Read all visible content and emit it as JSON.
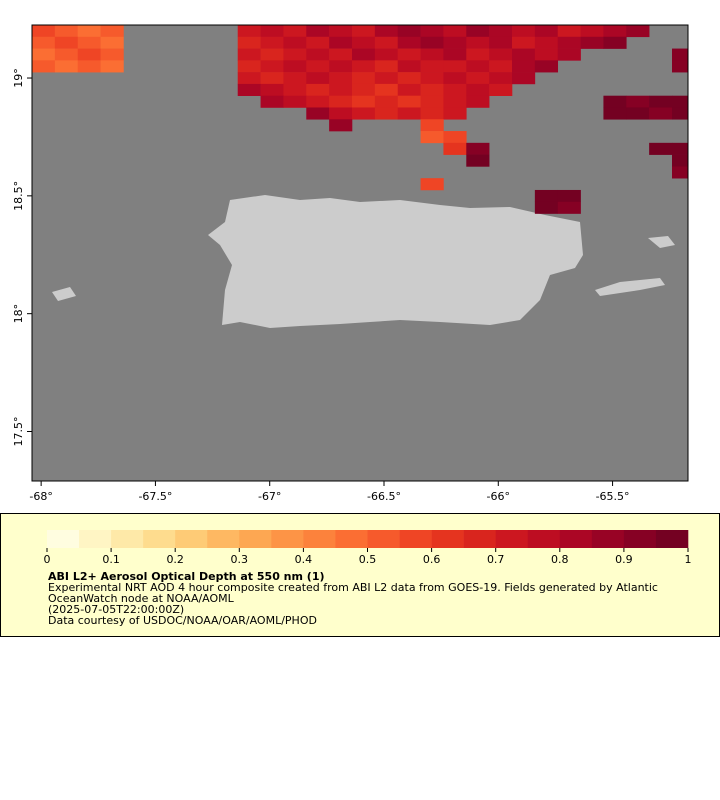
{
  "map": {
    "xlim": [
      -68.04,
      -65.17
    ],
    "ylim": [
      17.29,
      19.225
    ],
    "xticks": [
      {
        "value": -68,
        "label": "-68°"
      },
      {
        "value": -67.5,
        "label": "-67.5°"
      },
      {
        "value": -67,
        "label": "-67°"
      },
      {
        "value": -66.5,
        "label": "-66.5°"
      },
      {
        "value": -66,
        "label": "-66°"
      },
      {
        "value": -65.5,
        "label": "-65.5°"
      }
    ],
    "yticks": [
      {
        "value": 19,
        "label": "19°"
      },
      {
        "value": 18.5,
        "label": "18.5°"
      },
      {
        "value": 18,
        "label": "18°"
      },
      {
        "value": 17.5,
        "label": "17.5°"
      }
    ],
    "grid": {
      "lon0": -68.04,
      "dlon": 0.1,
      "lat0": 19.225,
      "dlat": 0.05,
      "rows": [
        [
          0.55,
          0.5,
          0.45,
          0.5,
          null,
          null,
          null,
          null,
          null,
          0.7,
          0.75,
          0.7,
          0.8,
          0.75,
          0.7,
          0.8,
          0.85,
          0.8,
          0.75,
          0.85,
          0.8,
          0.75,
          0.8,
          0.7,
          0.75,
          0.8,
          0.85,
          null,
          null
        ],
        [
          0.5,
          0.55,
          0.5,
          0.45,
          null,
          null,
          null,
          null,
          null,
          0.65,
          0.7,
          0.75,
          0.7,
          0.8,
          0.75,
          0.7,
          0.8,
          0.85,
          0.8,
          0.75,
          0.8,
          0.7,
          0.75,
          0.8,
          0.85,
          0.9,
          null,
          null,
          null
        ],
        [
          0.45,
          0.5,
          0.55,
          0.5,
          null,
          null,
          null,
          null,
          null,
          0.7,
          0.65,
          0.7,
          0.75,
          0.7,
          0.8,
          0.75,
          0.7,
          0.75,
          0.8,
          0.7,
          0.75,
          0.8,
          0.75,
          0.8,
          null,
          null,
          null,
          null,
          0.9
        ],
        [
          0.5,
          0.45,
          0.5,
          0.45,
          null,
          null,
          null,
          null,
          null,
          0.65,
          0.7,
          0.75,
          0.7,
          0.75,
          0.7,
          0.65,
          0.75,
          0.7,
          0.7,
          0.75,
          0.7,
          0.8,
          0.85,
          null,
          null,
          null,
          null,
          null,
          0.9
        ],
        [
          null,
          null,
          null,
          null,
          null,
          null,
          null,
          null,
          null,
          0.7,
          0.65,
          0.7,
          0.75,
          0.7,
          0.65,
          0.7,
          0.65,
          0.7,
          0.75,
          0.7,
          0.75,
          0.8,
          null,
          null,
          null,
          null,
          null,
          null,
          null
        ],
        [
          null,
          null,
          null,
          null,
          null,
          null,
          null,
          null,
          null,
          0.8,
          0.75,
          0.7,
          0.65,
          0.7,
          0.65,
          0.6,
          0.7,
          0.65,
          0.7,
          0.75,
          0.7,
          null,
          null,
          null,
          null,
          null,
          null,
          null,
          null
        ],
        [
          null,
          null,
          null,
          null,
          null,
          null,
          null,
          null,
          null,
          null,
          0.8,
          0.75,
          0.7,
          0.65,
          0.6,
          0.65,
          0.6,
          0.65,
          0.7,
          0.75,
          null,
          null,
          null,
          null,
          null,
          0.95,
          0.9,
          0.95,
          0.95
        ],
        [
          null,
          null,
          null,
          null,
          null,
          null,
          null,
          null,
          null,
          null,
          null,
          null,
          0.85,
          0.75,
          0.7,
          0.65,
          0.7,
          0.65,
          0.7,
          null,
          null,
          null,
          null,
          null,
          null,
          0.95,
          0.95,
          0.9,
          0.95
        ],
        [
          null,
          null,
          null,
          null,
          null,
          null,
          null,
          null,
          null,
          null,
          null,
          null,
          null,
          0.85,
          null,
          null,
          null,
          0.55,
          null,
          null,
          null,
          null,
          null,
          null,
          null,
          null,
          null,
          null,
          null
        ],
        [
          null,
          null,
          null,
          null,
          null,
          null,
          null,
          null,
          null,
          null,
          null,
          null,
          null,
          null,
          null,
          null,
          null,
          0.5,
          0.55,
          null,
          null,
          null,
          null,
          null,
          null,
          null,
          null,
          null,
          null
        ],
        [
          null,
          null,
          null,
          null,
          null,
          null,
          null,
          null,
          null,
          null,
          null,
          null,
          null,
          null,
          null,
          null,
          null,
          null,
          0.6,
          0.9,
          null,
          null,
          null,
          null,
          null,
          null,
          null,
          0.95,
          0.95
        ],
        [
          null,
          null,
          null,
          null,
          null,
          null,
          null,
          null,
          null,
          null,
          null,
          null,
          null,
          null,
          null,
          null,
          null,
          null,
          null,
          0.95,
          null,
          null,
          null,
          null,
          null,
          null,
          null,
          null,
          0.95
        ],
        [
          null,
          null,
          null,
          null,
          null,
          null,
          null,
          null,
          null,
          null,
          null,
          null,
          null,
          null,
          null,
          null,
          null,
          null,
          null,
          null,
          null,
          null,
          null,
          null,
          null,
          null,
          null,
          null,
          0.9
        ],
        [
          null,
          null,
          null,
          null,
          null,
          null,
          null,
          null,
          null,
          null,
          null,
          null,
          null,
          null,
          null,
          null,
          null,
          0.55,
          null,
          null,
          null,
          null,
          null,
          null,
          null,
          null,
          null,
          null,
          null
        ],
        [
          null,
          null,
          null,
          null,
          null,
          null,
          null,
          null,
          null,
          null,
          null,
          null,
          null,
          null,
          null,
          null,
          null,
          null,
          null,
          null,
          null,
          null,
          0.95,
          0.95,
          null,
          null,
          null,
          null,
          null
        ],
        [
          null,
          null,
          null,
          null,
          null,
          null,
          null,
          null,
          null,
          null,
          null,
          null,
          null,
          null,
          null,
          null,
          null,
          null,
          null,
          null,
          null,
          null,
          0.95,
          0.9,
          null,
          null,
          null,
          null,
          null
        ]
      ]
    }
  },
  "legend": {
    "range": [
      0,
      1
    ],
    "ticks": [
      0,
      0.1,
      0.2,
      0.3,
      0.4,
      0.5,
      0.6,
      0.7,
      0.8,
      0.9,
      1
    ],
    "colors": [
      "#fffde0",
      "#fff5c4",
      "#fee9a8",
      "#fedc8e",
      "#fecb76",
      "#feb862",
      "#fda752",
      "#fd9446",
      "#fc823c",
      "#fb6e33",
      "#f65a2c",
      "#ef4525",
      "#e5341f",
      "#d9251e",
      "#cc1720",
      "#bd0d22",
      "#ab0625",
      "#980325",
      "#860124",
      "#740122"
    ],
    "title": "ABI L2+ Aerosol Optical Depth at 550 nm (1)",
    "lines": [
      "Experimental NRT AOD 4 hour composite created from ABI L2 data from GOES-19. Fields generated by Atlantic",
      "OceanWatch node at NOAA/AOML",
      "(2025-07-05T22:00:00Z)",
      "Data courtesy of USDOC/NOAA/OAR/AOML/PHOD"
    ]
  }
}
